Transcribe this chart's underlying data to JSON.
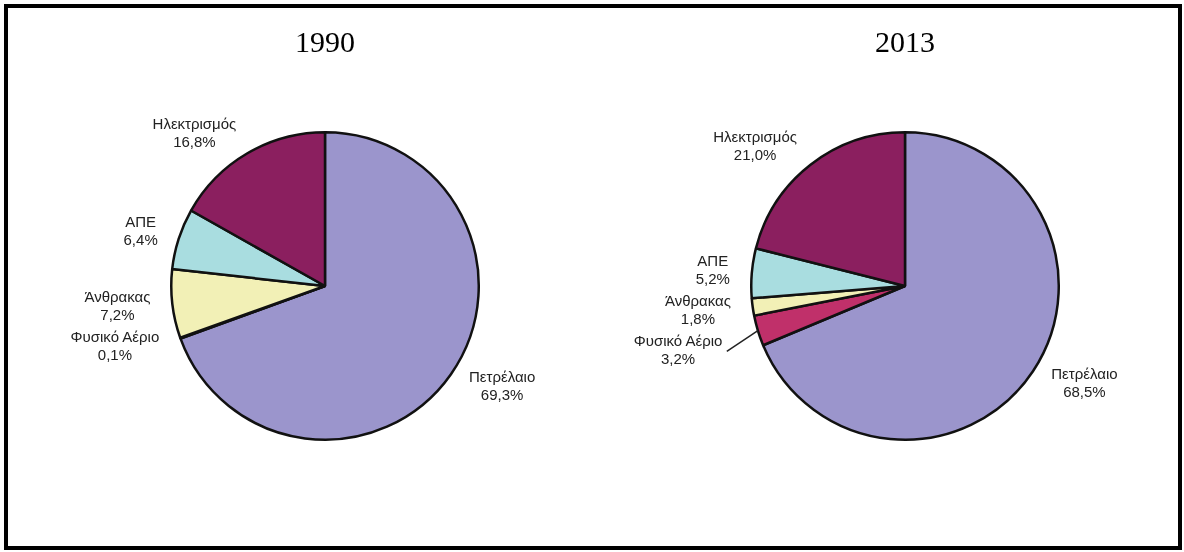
{
  "chart_data": [
    {
      "type": "pie",
      "title": "1990",
      "categories": [
        "Πετρέλαιο",
        "Φυσικό Αέριο",
        "Άνθρακας",
        "ΑΠΕ",
        "Ηλεκτρισμός"
      ],
      "values": [
        69.3,
        0.1,
        7.2,
        6.4,
        16.8
      ],
      "value_labels": [
        "69,3%",
        "0,1%",
        "7,2%",
        "6,4%",
        "16,8%"
      ],
      "colors": [
        "#9b95cc",
        "#c0306a",
        "#f2f0b6",
        "#a9dde0",
        "#8b1f5f"
      ]
    },
    {
      "type": "pie",
      "title": "2013",
      "categories": [
        "Πετρέλαιο",
        "Φυσικό Αέριο",
        "Άνθρακας",
        "ΑΠΕ",
        "Ηλεκτρισμός"
      ],
      "values": [
        68.5,
        3.2,
        1.8,
        5.2,
        21.0
      ],
      "value_labels": [
        "68,5%",
        "3,2%",
        "1,8%",
        "5,2%",
        "21,0%"
      ],
      "colors": [
        "#9b95cc",
        "#c0306a",
        "#f2f0b6",
        "#a9dde0",
        "#8b1f5f"
      ]
    }
  ]
}
